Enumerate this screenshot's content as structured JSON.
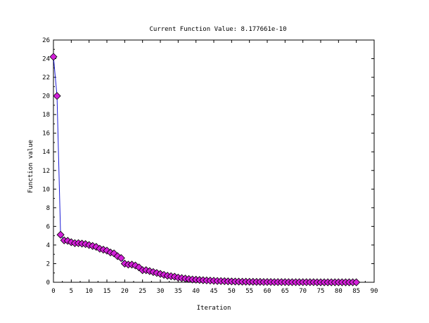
{
  "chart_data": {
    "type": "line",
    "title": "Current Function Value: 8.177661e-10",
    "xlabel": "Iteration",
    "ylabel": "Function value",
    "xlim": [
      0,
      90
    ],
    "ylim": [
      0,
      26
    ],
    "xticks": [
      "0",
      "5",
      "10",
      "15",
      "20",
      "25",
      "30",
      "35",
      "40",
      "45",
      "50",
      "55",
      "60",
      "65",
      "70",
      "75",
      "80",
      "85",
      "90"
    ],
    "yticks": [
      "0",
      "2",
      "4",
      "6",
      "8",
      "10",
      "12",
      "14",
      "16",
      "18",
      "20",
      "22",
      "24",
      "26"
    ],
    "grid": false,
    "line_color": "#1a1ad6",
    "marker_color": "#d21fd8",
    "marker": "diamond",
    "x": [
      0,
      1,
      2,
      3,
      4,
      5,
      6,
      7,
      8,
      9,
      10,
      11,
      12,
      13,
      14,
      15,
      16,
      17,
      18,
      19,
      20,
      21,
      22,
      23,
      24,
      25,
      26,
      27,
      28,
      29,
      30,
      31,
      32,
      33,
      34,
      35,
      36,
      37,
      38,
      39,
      40,
      41,
      42,
      43,
      44,
      45,
      46,
      47,
      48,
      49,
      50,
      51,
      52,
      53,
      54,
      55,
      56,
      57,
      58,
      59,
      60,
      61,
      62,
      63,
      64,
      65,
      66,
      67,
      68,
      69,
      70,
      71,
      72,
      73,
      74,
      75,
      76,
      77,
      78,
      79,
      80,
      81,
      82,
      83,
      84,
      85
    ],
    "y": [
      24.2,
      20.0,
      5.1,
      4.5,
      4.45,
      4.3,
      4.2,
      4.2,
      4.15,
      4.1,
      4.0,
      3.9,
      3.8,
      3.6,
      3.5,
      3.4,
      3.2,
      3.1,
      2.8,
      2.6,
      2.0,
      1.9,
      1.9,
      1.8,
      1.6,
      1.3,
      1.3,
      1.2,
      1.1,
      1.0,
      0.9,
      0.8,
      0.7,
      0.65,
      0.6,
      0.5,
      0.45,
      0.4,
      0.35,
      0.3,
      0.28,
      0.25,
      0.22,
      0.2,
      0.18,
      0.16,
      0.14,
      0.13,
      0.12,
      0.1,
      0.09,
      0.08,
      0.07,
      0.06,
      0.06,
      0.05,
      0.05,
      0.04,
      0.04,
      0.03,
      0.03,
      0.03,
      0.02,
      0.02,
      0.02,
      0.02,
      0.01,
      0.01,
      0.01,
      0.01,
      0.01,
      0.01,
      0.01,
      0.01,
      0.0,
      0.0,
      0.0,
      0.0,
      0.0,
      0.0,
      0.0,
      0.0,
      0.0,
      0.0,
      0.0,
      0.0
    ]
  }
}
